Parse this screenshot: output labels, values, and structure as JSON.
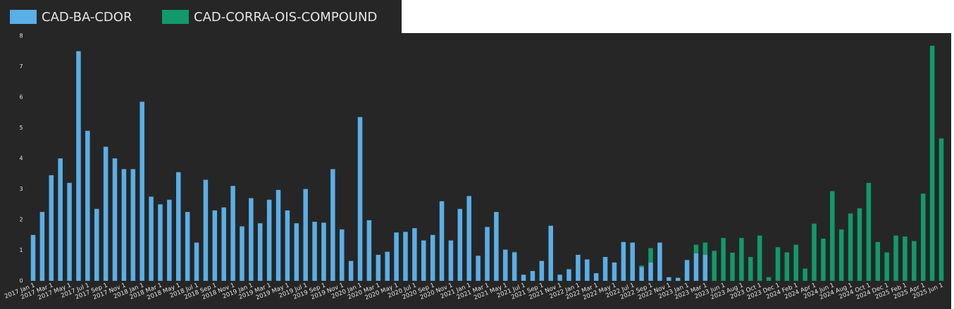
{
  "chart_data": {
    "type": "stacked-bar",
    "categories": [
      "2017 Jan 1",
      null,
      "2017 Mar 1",
      null,
      "2017 May 1",
      null,
      "2017 Jul 1",
      null,
      "2017 Sep 1",
      null,
      "2017 Nov 1",
      null,
      "2018 Jan 1",
      null,
      "2018 Mar 1",
      null,
      "2018 May 1",
      null,
      "2018 Jul 1",
      null,
      "2018 Sep 1",
      null,
      "2018 Nov 1",
      null,
      "2019 Jan 1",
      null,
      "2019 Mar 1",
      null,
      "2019 May 1",
      null,
      "2019 Jul 1",
      null,
      "2019 Sep 1",
      null,
      "2019 Nov 1",
      null,
      "2020 Jan 1",
      null,
      "2020 Mar 1",
      null,
      "2020 May 1",
      null,
      "2020 Jul 1",
      null,
      "2020 Sep 1",
      null,
      "2020 Nov 1",
      null,
      "2021 Jan 1",
      null,
      "2021 Mar 1",
      null,
      "2021 May 1",
      null,
      "2021 Jul 1",
      null,
      "2021 Sep 1",
      null,
      "2021 Nov 1",
      null,
      "2022 Jan 1",
      null,
      "2022 Mar 1",
      null,
      "2022 May 1",
      null,
      "2022 Jul 1",
      null,
      "2022 Sep 1",
      null,
      "2022 Nov 1",
      null,
      "2023 Jan 1",
      null,
      "2023 Mar 1",
      null,
      "2023 Jun 1",
      null,
      "2023 Aug 1",
      null,
      "2023 Oct 1",
      null,
      "2023 Dec 1",
      null,
      "2024 Feb 1",
      null,
      "2024 Apr 1",
      null,
      "2024 Jun 1",
      null,
      "2024 Aug 1",
      null,
      "2024 Oct 1",
      null,
      "2024 Dec 1",
      null,
      "2025 Feb 1",
      null,
      "2025 Apr 1",
      null,
      "2025 Jun 1"
    ],
    "series": [
      {
        "name": "CAD-BA-CDOR",
        "color": "#5aafe6",
        "values": [
          1.5,
          2.25,
          3.45,
          4.0,
          3.2,
          7.5,
          4.9,
          2.35,
          4.38,
          4.0,
          3.65,
          3.65,
          5.85,
          2.75,
          2.5,
          2.65,
          3.55,
          2.25,
          1.25,
          3.3,
          2.3,
          2.4,
          3.1,
          1.78,
          2.7,
          1.88,
          2.65,
          2.97,
          2.3,
          1.88,
          3.0,
          1.93,
          1.9,
          3.65,
          1.68,
          0.65,
          5.35,
          1.98,
          0.85,
          0.95,
          1.58,
          1.6,
          1.72,
          1.32,
          1.5,
          2.6,
          1.32,
          2.35,
          2.77,
          0.82,
          1.76,
          2.25,
          1.02,
          0.92,
          0.2,
          0.32,
          0.65,
          1.8,
          0.2,
          0.38,
          0.85,
          0.7,
          0.25,
          0.78,
          0.6,
          1.27,
          1.25,
          0.45,
          0.6,
          1.25,
          0.12,
          0.1,
          0.68,
          0.9,
          0.85,
          null,
          null,
          null,
          null,
          null,
          null,
          null,
          null,
          null,
          null,
          null,
          null,
          null,
          null,
          null,
          null,
          null,
          null,
          null,
          null,
          null,
          null,
          null,
          null,
          null,
          null
        ]
      },
      {
        "name": "CAD-CORRA-OIS-COMPOUND",
        "color": "#12996c",
        "values": [
          null,
          null,
          null,
          null,
          null,
          null,
          null,
          null,
          null,
          null,
          null,
          null,
          null,
          null,
          null,
          null,
          null,
          null,
          null,
          null,
          null,
          null,
          null,
          null,
          null,
          null,
          null,
          null,
          null,
          null,
          null,
          null,
          null,
          null,
          null,
          null,
          null,
          null,
          null,
          null,
          null,
          null,
          null,
          null,
          null,
          null,
          null,
          null,
          null,
          null,
          null,
          null,
          null,
          0.03,
          null,
          null,
          null,
          null,
          null,
          null,
          null,
          null,
          null,
          null,
          null,
          null,
          null,
          0.05,
          0.47,
          null,
          null,
          null,
          null,
          0.28,
          0.4,
          0.98,
          1.4,
          0.92,
          1.4,
          0.78,
          1.48,
          0.12,
          1.1,
          0.93,
          1.18,
          0.4,
          1.87,
          1.38,
          2.93,
          1.68,
          2.2,
          2.37,
          3.2,
          1.27,
          0.93,
          1.48,
          1.45,
          1.3,
          2.85,
          7.68,
          4.65
        ]
      }
    ],
    "ylim": [
      0,
      8
    ],
    "yticks": [
      0,
      1,
      2,
      3,
      4,
      5,
      6,
      7,
      8
    ],
    "grid": false
  }
}
